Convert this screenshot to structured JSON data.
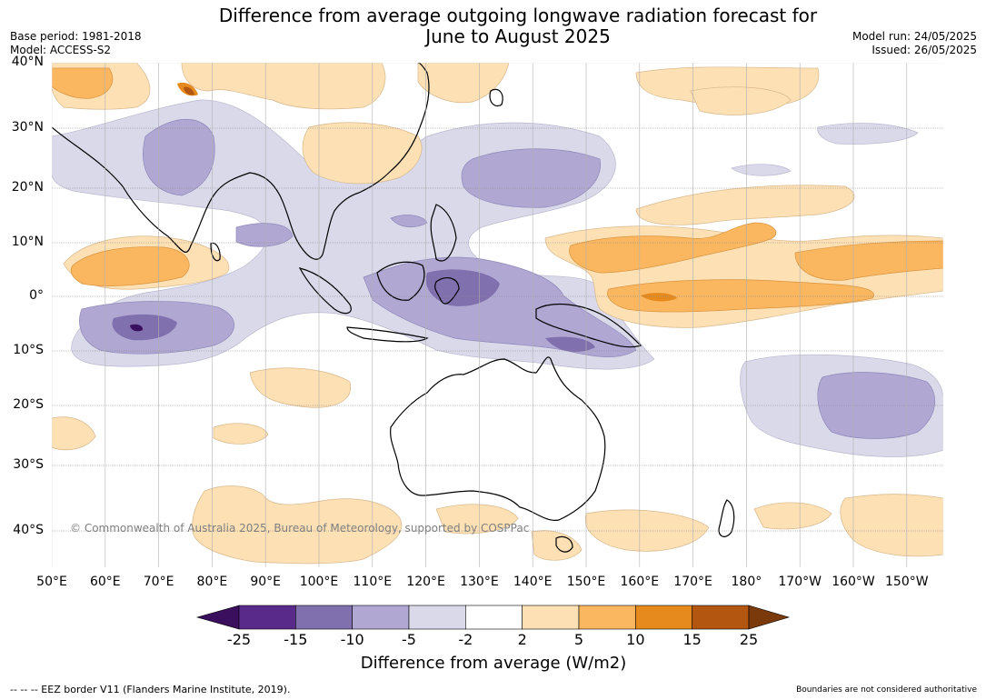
{
  "title_line1": "Difference from average outgoing longwave radiation forecast for",
  "title_line2": "June to August 2025",
  "meta": {
    "base_period": "Base period: 1981-2018",
    "model": "Model: ACCESS-S2",
    "model_run": "Model run: 24/05/2025",
    "issued": "Issued: 26/05/2025"
  },
  "lat_labels": [
    "40°N",
    "30°N",
    "20°N",
    "10°N",
    "0°",
    "10°S",
    "20°S",
    "30°S",
    "40°S"
  ],
  "lon_labels": [
    "50°E",
    "60°E",
    "70°E",
    "80°E",
    "90°E",
    "100°E",
    "110°E",
    "120°E",
    "130°E",
    "140°E",
    "150°E",
    "160°E",
    "170°E",
    "180°",
    "170°W",
    "160°W",
    "150°W"
  ],
  "copyright": "© Commonwealth of Australia 2025, Bureau of Meteorology, supported by COSPPac",
  "colorbar": {
    "ticks": [
      "-25",
      "-15",
      "-10",
      "-5",
      "-2",
      "2",
      "5",
      "10",
      "15",
      "25"
    ],
    "colors": [
      "#3a0f5e",
      "#5a2a8a",
      "#8070ae",
      "#b0a8d2",
      "#d9d9ea",
      "#ffffff",
      "#fde0b4",
      "#fbb760",
      "#e68a1e",
      "#b25610",
      "#7a3a0c"
    ],
    "title": "Difference from average (W/m2)"
  },
  "footer_left": "--  --  -- EEZ border V11 (Flanders Marine Institute, 2019).",
  "footer_right": "Boundaries are not considered authoritative"
}
